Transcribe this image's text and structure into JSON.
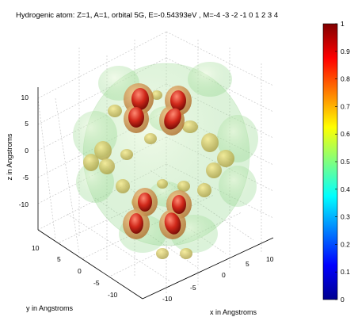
{
  "chart_data": {
    "type": "isosurface-3d",
    "title": "Hydrogenic atom: Z=1, A=1, orbital 5G, E=-0.54393eV , M=-4 -3 -2 -1  0  1  2  3  4",
    "xlabel": "x in Angstroms",
    "ylabel": "y in Angstroms",
    "zlabel": "z in Angstroms",
    "x_ticks": [
      "-10",
      "-5",
      "0",
      "5",
      "10"
    ],
    "y_ticks": [
      "10",
      "5",
      "0",
      "-5",
      "-10"
    ],
    "z_ticks": [
      "10",
      "5",
      "0",
      "-5",
      "-10"
    ],
    "xlim": [
      -13,
      13
    ],
    "ylim": [
      -13,
      13
    ],
    "zlim": [
      -13,
      13
    ],
    "grid": true,
    "colorbar": {
      "colormap": "jet",
      "range": [
        0,
        1
      ],
      "ticks": [
        "1",
        "0.9",
        "0.8",
        "0.7",
        "0.6",
        "0.5",
        "0.4",
        "0.3",
        "0.2",
        "0.1",
        "0"
      ]
    }
  }
}
